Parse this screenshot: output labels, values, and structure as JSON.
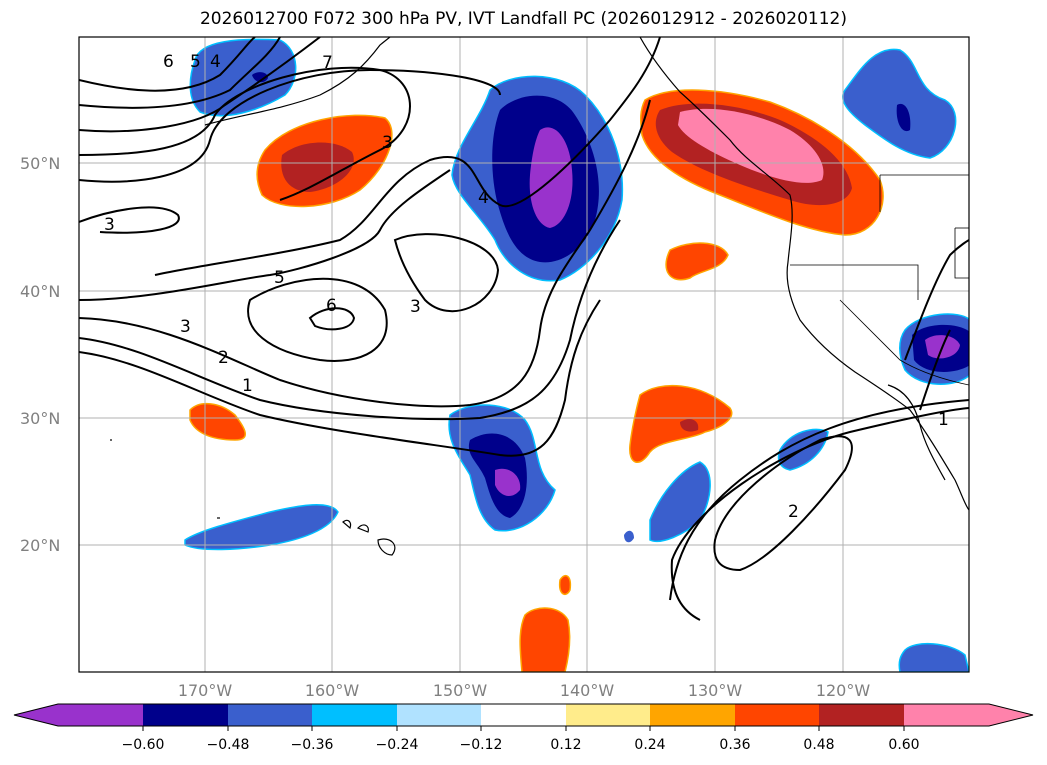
{
  "title": "2026012700 F072 300 hPa PV, IVT Landfall PC (2026012912 - 2026020112)",
  "lat_labels": [
    "50°N",
    "40°N",
    "30°N",
    "20°N"
  ],
  "lon_labels": [
    "170°W",
    "160°W",
    "150°W",
    "140°W",
    "130°W",
    "120°W"
  ],
  "colorbar": {
    "tick_labels": [
      "−0.60",
      "−0.48",
      "−0.36",
      "−0.24",
      "−0.12",
      "0.12",
      "0.24",
      "0.36",
      "0.48",
      "0.60"
    ],
    "colors": [
      "#9932cc",
      "#00008b",
      "#3a5fcd",
      "#00bfff",
      "#b0e2ff",
      "#ffffff",
      "#ffec8b",
      "#ffa500",
      "#ff4500",
      "#b22222",
      "#ff82ab"
    ]
  },
  "contour_labels": [
    "6",
    "5",
    "4",
    "7",
    "3",
    "3",
    "4",
    "5",
    "6",
    "3",
    "3",
    "2",
    "1",
    "2",
    "1"
  ]
}
